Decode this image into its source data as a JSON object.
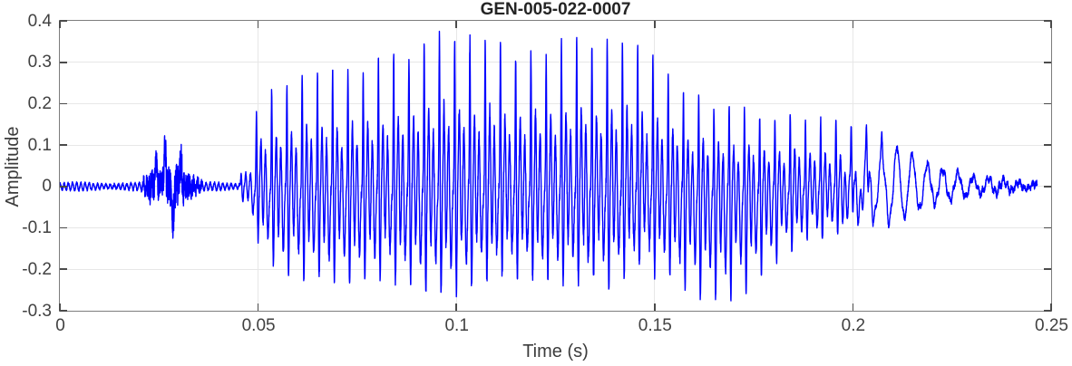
{
  "figure": {
    "background": "#ffffff"
  },
  "chart_data": {
    "type": "line",
    "title": "GEN-005-022-0007",
    "xlabel": "Time (s)",
    "ylabel": "Amplitude",
    "xlim": [
      0,
      0.25
    ],
    "ylim": [
      -0.3,
      0.4
    ],
    "xticks": [
      0,
      0.05,
      0.1,
      0.15,
      0.2,
      0.25
    ],
    "xtick_labels": [
      "0",
      "0.05",
      "0.1",
      "0.15",
      "0.2",
      "0.25"
    ],
    "yticks": [
      -0.3,
      -0.2,
      -0.1,
      0,
      0.1,
      0.2,
      0.3,
      0.4
    ],
    "ytick_labels": [
      "-0.3",
      "-0.2",
      "-0.1",
      "0",
      "0.1",
      "0.2",
      "0.3",
      "0.4"
    ],
    "grid": true,
    "legend": "none",
    "colors": {
      "line": "#0000ff",
      "axis_box": "#7d7d7d",
      "tick": "#4b4b4b",
      "grid": "#e7e7e7",
      "title_text": "#242424",
      "label_text": "#3c3c3c",
      "tick_text": "#414141"
    },
    "series": [
      {
        "name": "speech waveform GEN-005-022-0007",
        "description": "audio amplitude vs time; quiet lead-in, small noise burst near 0.021-0.036 s, voiced segment ~0.046-0.21 s peaking +0.36 / -0.26 around 0.11-0.17 s, decaying sinusoidal tail to ~0.246 s"
      }
    ],
    "signal": {
      "duration_s": 0.2465,
      "sample_rate_hz": 28000,
      "f0_hz": 260,
      "voiced_start_s": 0.0455,
      "tail_sine_start_s": 0.192,
      "tail_sine_full_s": 0.215,
      "baseline_ripple": {
        "freq_hz": 950,
        "amp": 0.007
      },
      "noise_amp_voiced": 0.05,
      "pulse_pos": [
        [
          0.06,
          0.03,
          1.0
        ],
        [
          0.36,
          0.045,
          0.52
        ],
        [
          0.66,
          0.05,
          0.38
        ]
      ],
      "pulse_neg": [
        [
          0.17,
          0.04,
          1.0
        ],
        [
          0.5,
          0.05,
          0.55
        ],
        [
          0.82,
          0.06,
          0.72
        ]
      ],
      "burst": {
        "start_s": 0.0205,
        "end_s": 0.036,
        "noise_envelope": [
          [
            0.0205,
            0.0
          ],
          [
            0.022,
            0.04
          ],
          [
            0.0245,
            0.03
          ],
          [
            0.0265,
            0.05
          ],
          [
            0.028,
            0.045
          ],
          [
            0.0305,
            0.05
          ],
          [
            0.033,
            0.025
          ],
          [
            0.036,
            0.008
          ]
        ],
        "spikes": [
          [
            0.0243,
            0.055
          ],
          [
            0.0265,
            0.095
          ],
          [
            0.0285,
            -0.085
          ],
          [
            0.0305,
            0.06
          ]
        ],
        "spike_sigma_s": 0.00025
      },
      "envelope_pos": [
        [
          0.044,
          0.0
        ],
        [
          0.0455,
          0.03
        ],
        [
          0.048,
          0.095
        ],
        [
          0.05,
          0.18
        ],
        [
          0.053,
          0.22
        ],
        [
          0.058,
          0.235
        ],
        [
          0.063,
          0.27
        ],
        [
          0.07,
          0.3
        ],
        [
          0.075,
          0.29
        ],
        [
          0.08,
          0.33
        ],
        [
          0.09,
          0.32
        ],
        [
          0.095,
          0.34
        ],
        [
          0.1,
          0.35
        ],
        [
          0.105,
          0.33
        ],
        [
          0.11,
          0.36
        ],
        [
          0.115,
          0.34
        ],
        [
          0.12,
          0.35
        ],
        [
          0.125,
          0.36
        ],
        [
          0.13,
          0.35
        ],
        [
          0.135,
          0.34
        ],
        [
          0.14,
          0.32
        ],
        [
          0.145,
          0.33
        ],
        [
          0.15,
          0.3
        ],
        [
          0.153,
          0.28
        ],
        [
          0.157,
          0.245
        ],
        [
          0.161,
          0.235
        ],
        [
          0.165,
          0.21
        ],
        [
          0.168,
          0.225
        ],
        [
          0.172,
          0.19
        ],
        [
          0.176,
          0.17
        ],
        [
          0.18,
          0.155
        ],
        [
          0.185,
          0.16
        ],
        [
          0.19,
          0.15
        ],
        [
          0.195,
          0.165
        ],
        [
          0.2,
          0.16
        ],
        [
          0.205,
          0.155
        ],
        [
          0.208,
          0.13
        ],
        [
          0.212,
          0.1
        ],
        [
          0.216,
          0.07
        ],
        [
          0.22,
          0.045
        ],
        [
          0.225,
          0.035
        ],
        [
          0.23,
          0.022
        ],
        [
          0.235,
          0.018
        ],
        [
          0.24,
          0.012
        ],
        [
          0.2465,
          0.006
        ]
      ],
      "envelope_neg": [
        [
          0.044,
          0.0
        ],
        [
          0.0455,
          0.025
        ],
        [
          0.048,
          0.08
        ],
        [
          0.05,
          0.13
        ],
        [
          0.053,
          0.2
        ],
        [
          0.058,
          0.22
        ],
        [
          0.065,
          0.21
        ],
        [
          0.07,
          0.22
        ],
        [
          0.08,
          0.23
        ],
        [
          0.09,
          0.25
        ],
        [
          0.1,
          0.24
        ],
        [
          0.11,
          0.22
        ],
        [
          0.12,
          0.23
        ],
        [
          0.13,
          0.22
        ],
        [
          0.14,
          0.23
        ],
        [
          0.145,
          0.21
        ],
        [
          0.15,
          0.215
        ],
        [
          0.155,
          0.23
        ],
        [
          0.16,
          0.25
        ],
        [
          0.165,
          0.26
        ],
        [
          0.17,
          0.26
        ],
        [
          0.174,
          0.25
        ],
        [
          0.178,
          0.22
        ],
        [
          0.182,
          0.18
        ],
        [
          0.186,
          0.15
        ],
        [
          0.19,
          0.125
        ],
        [
          0.195,
          0.12
        ],
        [
          0.2,
          0.135
        ],
        [
          0.205,
          0.12
        ],
        [
          0.21,
          0.1
        ],
        [
          0.215,
          0.065
        ],
        [
          0.22,
          0.04
        ],
        [
          0.225,
          0.03
        ],
        [
          0.23,
          0.02
        ],
        [
          0.235,
          0.014
        ],
        [
          0.24,
          0.009
        ],
        [
          0.2465,
          0.005
        ]
      ]
    }
  }
}
